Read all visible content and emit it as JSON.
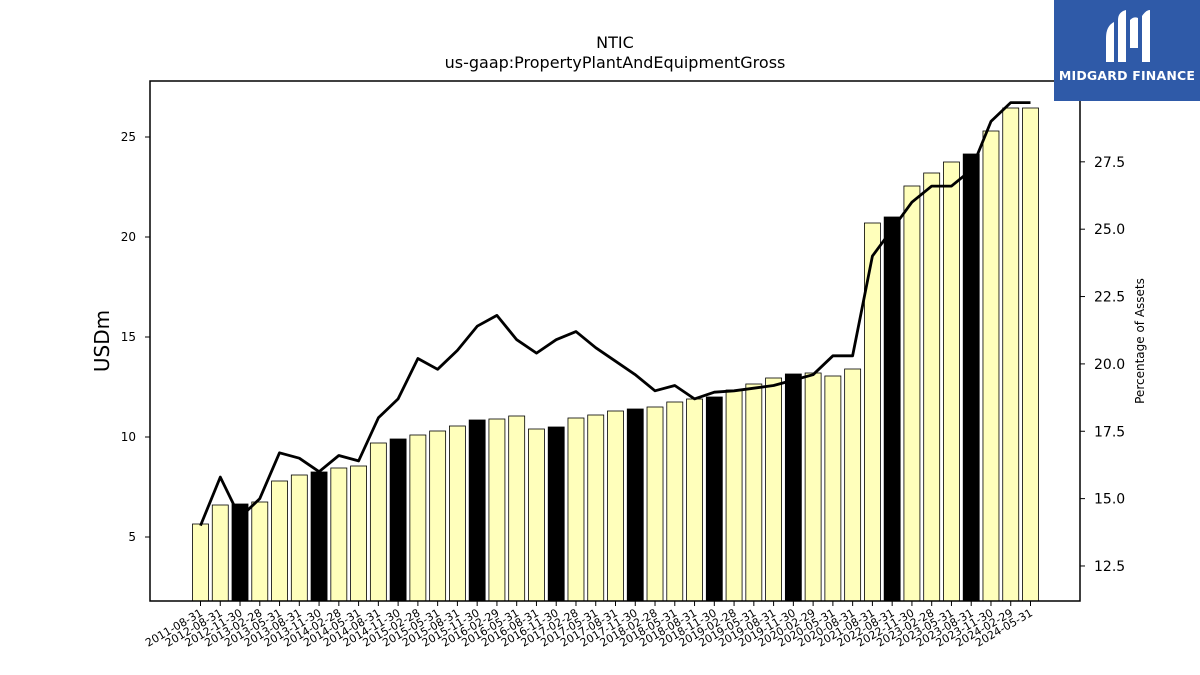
{
  "brand": {
    "name": "MIDGARD FINANCE",
    "bg_color": "#2f5aa8",
    "icon": "midgard-logo-icon"
  },
  "chart_data": {
    "type": "bar",
    "title": "NTIC",
    "subtitle": "us-gaap:PropertyPlantAndEquipmentGross",
    "ylabel": "USDm",
    "y2label": "Percentage of Assets",
    "ylim": [
      1.8,
      27.8
    ],
    "y2lim": [
      11.2,
      30.5
    ],
    "yticks": [
      5,
      10,
      15,
      20,
      25
    ],
    "y2ticks": [
      "12.5",
      "15.0",
      "17.5",
      "20.0",
      "22.5",
      "25.0",
      "27.5"
    ],
    "categories": [
      "2011-08-31",
      "2012-08-31",
      "2012-11-30",
      "2013-02-28",
      "2013-05-31",
      "2013-08-31",
      "2013-11-30",
      "2014-02-28",
      "2014-05-31",
      "2014-08-31",
      "2014-11-30",
      "2015-02-28",
      "2015-05-31",
      "2015-08-31",
      "2015-11-30",
      "2016-02-29",
      "2016-05-31",
      "2016-08-31",
      "2016-11-30",
      "2017-02-28",
      "2017-05-31",
      "2017-08-31",
      "2017-11-30",
      "2018-02-28",
      "2018-05-31",
      "2018-08-31",
      "2018-11-30",
      "2019-02-28",
      "2019-05-31",
      "2019-08-31",
      "2019-11-30",
      "2020-02-29",
      "2020-05-31",
      "2020-08-31",
      "2021-08-31",
      "2022-08-31",
      "2022-11-30",
      "2023-02-28",
      "2023-05-31",
      "2023-08-31",
      "2023-11-30",
      "2024-02-29",
      "2024-05-31"
    ],
    "series": [
      {
        "kind": "bar",
        "values": [
          5.65,
          6.6,
          6.65,
          6.75,
          7.8,
          8.1,
          8.25,
          8.45,
          8.55,
          9.7,
          9.9,
          10.1,
          10.3,
          10.55,
          10.85,
          10.9,
          11.05,
          10.4,
          10.5,
          10.95,
          11.1,
          11.3,
          11.4,
          11.5,
          11.75,
          11.9,
          12.0,
          12.35,
          12.65,
          12.95,
          13.15,
          13.2,
          13.05,
          13.4,
          20.7,
          21.0,
          22.55,
          23.2,
          23.75,
          24.15,
          25.3,
          26.45,
          26.45
        ],
        "highlight": [
          false,
          false,
          true,
          false,
          false,
          false,
          true,
          false,
          false,
          false,
          true,
          false,
          false,
          false,
          true,
          false,
          false,
          false,
          true,
          false,
          false,
          false,
          true,
          false,
          false,
          false,
          true,
          false,
          false,
          false,
          true,
          false,
          false,
          false,
          false,
          true,
          false,
          false,
          false,
          true,
          false,
          false,
          false
        ],
        "fill_color": "#ffffbb",
        "highlight_color": "#000000"
      },
      {
        "kind": "line",
        "axis": "right",
        "values": [
          14.0,
          15.8,
          14.3,
          15.0,
          16.7,
          16.5,
          16.0,
          16.6,
          16.4,
          18.0,
          18.7,
          20.2,
          19.8,
          20.5,
          21.4,
          21.8,
          20.9,
          20.4,
          20.9,
          21.2,
          20.6,
          20.1,
          19.6,
          19.0,
          19.2,
          18.7,
          18.95,
          19.0,
          19.1,
          19.2,
          19.4,
          19.6,
          20.3,
          20.3,
          24.0,
          25.0,
          26.0,
          26.6,
          26.6,
          27.2,
          29.0,
          29.7,
          29.7
        ],
        "color": "#000000"
      }
    ],
    "grid": false
  }
}
